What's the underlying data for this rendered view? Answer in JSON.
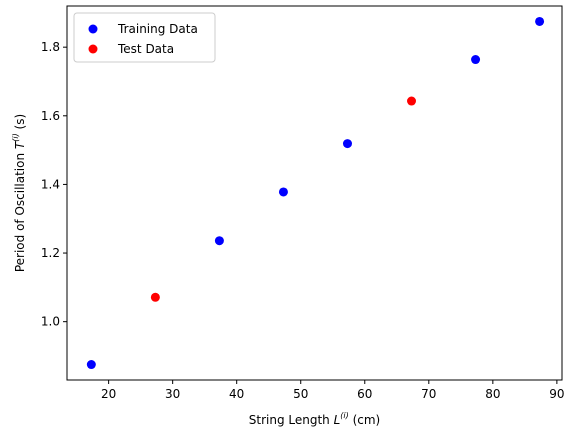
{
  "chart_data": {
    "type": "scatter",
    "xlabel": {
      "main": "String Length ",
      "var": "L",
      "sup": "(i)",
      "unit": " (cm)"
    },
    "ylabel": {
      "main": "Period of Oscillation ",
      "var": "T",
      "sup": "(i)",
      "unit": " (s)"
    },
    "xlim": [
      13.5,
      90.8
    ],
    "ylim": [
      0.83,
      1.92
    ],
    "xticks": [
      20,
      30,
      40,
      50,
      60,
      70,
      80,
      90
    ],
    "yticks": [
      1.0,
      1.2,
      1.4,
      1.6,
      1.8
    ],
    "ytick_labels": [
      "1.0",
      "1.2",
      "1.4",
      "1.6",
      "1.8"
    ],
    "grid": false,
    "legend_position": "top-left",
    "series": [
      {
        "name": "Training Data",
        "color": "#0000ff",
        "x": [
          17.3,
          37.3,
          47.3,
          57.3,
          77.3,
          87.3
        ],
        "y": [
          0.875,
          1.236,
          1.378,
          1.519,
          1.764,
          1.875
        ]
      },
      {
        "name": "Test Data",
        "color": "#ff0000",
        "x": [
          27.3,
          67.3
        ],
        "y": [
          1.071,
          1.643
        ]
      }
    ]
  }
}
